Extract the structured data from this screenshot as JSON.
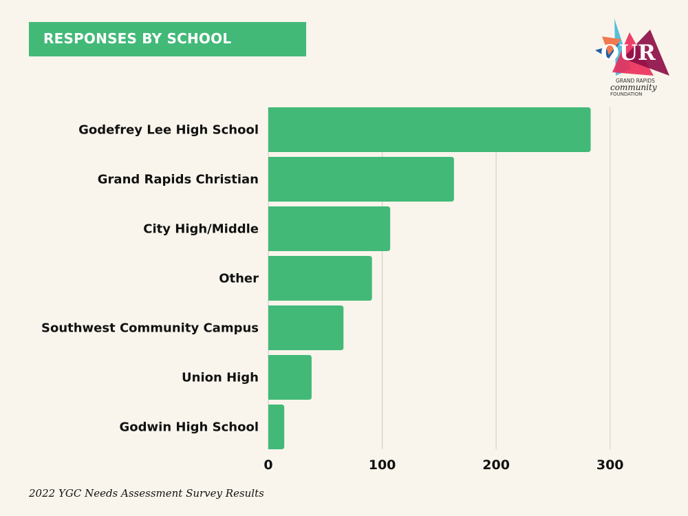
{
  "header": {
    "title": "RESPONSES BY SCHOOL"
  },
  "logo": {
    "word": "OUR",
    "line1": "GRAND RAPIDS",
    "line2": "community",
    "line3": "FOUNDATION"
  },
  "footer": {
    "caption": "2022 YGC Needs Assessment Survey Results"
  },
  "colors": {
    "bar": "#43b978",
    "background": "#f9f5ec",
    "grid": "#d8d4cc"
  },
  "chart_data": {
    "type": "bar",
    "orientation": "horizontal",
    "title": "RESPONSES BY SCHOOL",
    "categories": [
      "Godefrey Lee High School",
      "Grand Rapids Christian",
      "City High/Middle",
      "Other",
      "Southwest Community Campus",
      "Union High",
      "Godwin High School"
    ],
    "values": [
      283,
      163,
      107,
      91,
      66,
      38,
      14
    ],
    "xlim": [
      0,
      300
    ],
    "xticks": [
      0,
      100,
      200,
      300
    ],
    "xlabel": "",
    "ylabel": "",
    "grid": true,
    "legend": "none"
  }
}
